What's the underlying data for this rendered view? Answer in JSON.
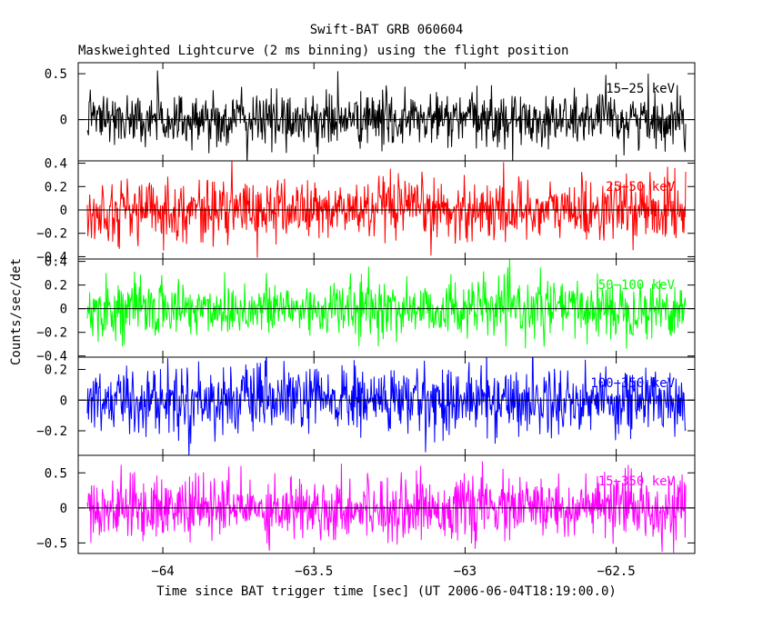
{
  "chart_data": {
    "type": "line",
    "title": "Swift-BAT GRB 060604",
    "subtitle": "Maskweighted Lightcurve (2 ms binning) using the flight position",
    "xlabel": "Time since BAT trigger time [sec] (UT 2006-06-04T18:19:00.0)",
    "ylabel": "Counts/sec/det",
    "xlim": [
      -64.28,
      -62.24
    ],
    "x_ticks": [
      {
        "v": -64,
        "label": "−64"
      },
      {
        "v": -63.5,
        "label": "−63.5"
      },
      {
        "v": -63,
        "label": "−63"
      },
      {
        "v": -62.5,
        "label": "−62.5"
      }
    ],
    "x_data_range": [
      -64.25,
      -62.27
    ],
    "panels": [
      {
        "band": "15−25 keV",
        "color": "#000000",
        "ylim": [
          -0.45,
          0.62
        ],
        "amplitude": 0.15,
        "y_ticks": [
          {
            "v": 0.5,
            "label": "0.5"
          },
          {
            "v": 0,
            "label": "0"
          }
        ]
      },
      {
        "band": "25−50 keV",
        "color": "#ff0000",
        "ylim": [
          -0.42,
          0.42
        ],
        "amplitude": 0.13,
        "y_ticks": [
          {
            "v": 0.4,
            "label": "0.4"
          },
          {
            "v": 0.2,
            "label": "0.2"
          },
          {
            "v": 0,
            "label": "0"
          },
          {
            "v": -0.2,
            "label": "−0.2"
          },
          {
            "v": -0.4,
            "label": "−0.4"
          }
        ]
      },
      {
        "band": "50−100 keV",
        "color": "#00ff00",
        "ylim": [
          -0.41,
          0.42
        ],
        "amplitude": 0.12,
        "y_ticks": [
          {
            "v": 0.4,
            "label": "0.4"
          },
          {
            "v": 0.2,
            "label": "0.2"
          },
          {
            "v": 0,
            "label": "0"
          },
          {
            "v": -0.2,
            "label": "−0.2"
          },
          {
            "v": -0.4,
            "label": "−0.4"
          }
        ]
      },
      {
        "band": "100−350 keV",
        "color": "#0000ff",
        "ylim": [
          -0.36,
          0.28
        ],
        "amplitude": 0.11,
        "y_ticks": [
          {
            "v": 0.2,
            "label": "0.2"
          },
          {
            "v": 0,
            "label": "0"
          },
          {
            "v": -0.2,
            "label": "−0.2"
          }
        ]
      },
      {
        "band": "15−350 keV",
        "color": "#ff00ff",
        "ylim": [
          -0.65,
          0.75
        ],
        "amplitude": 0.22,
        "y_ticks": [
          {
            "v": 0.5,
            "label": "0.5"
          },
          {
            "v": 0,
            "label": "0"
          },
          {
            "v": -0.5,
            "label": "−0.5"
          }
        ]
      }
    ]
  }
}
